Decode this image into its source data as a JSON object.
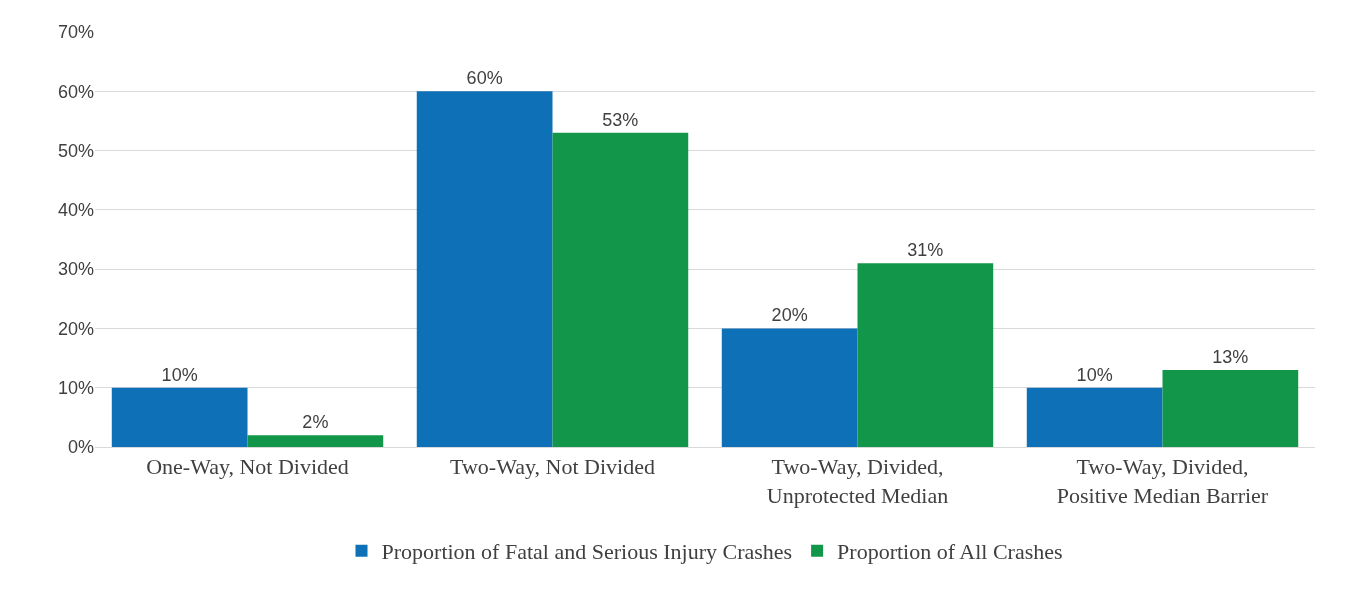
{
  "chart_data": {
    "type": "bar",
    "categories": [
      "One-Way, Not Divided",
      "Two-Way, Not Divided",
      "Two-Way, Divided,\nUnprotected Median",
      "Two-Way, Divided,\nPositive Median Barrier"
    ],
    "series": [
      {
        "name": "Proportion of Fatal and Serious Injury Crashes",
        "color": "#0e71b8",
        "values": [
          10,
          60,
          20,
          10
        ],
        "value_labels": [
          "10%",
          "60%",
          "20%",
          "10%"
        ]
      },
      {
        "name": "Proportion of All Crashes",
        "color": "#12964a",
        "values": [
          2,
          53,
          31,
          13
        ],
        "value_labels": [
          "2%",
          "53%",
          "31%",
          "13%"
        ]
      }
    ],
    "ylim": [
      0,
      70
    ],
    "yticks": [
      {
        "value": 0,
        "label": "0%"
      },
      {
        "value": 10,
        "label": "10%"
      },
      {
        "value": 20,
        "label": "20%"
      },
      {
        "value": 30,
        "label": "30%"
      },
      {
        "value": 40,
        "label": "40%"
      },
      {
        "value": 50,
        "label": "50%"
      },
      {
        "value": 60,
        "label": "60%"
      },
      {
        "value": 70,
        "label": "70%"
      }
    ],
    "grid": "y",
    "legend": "bottom"
  }
}
